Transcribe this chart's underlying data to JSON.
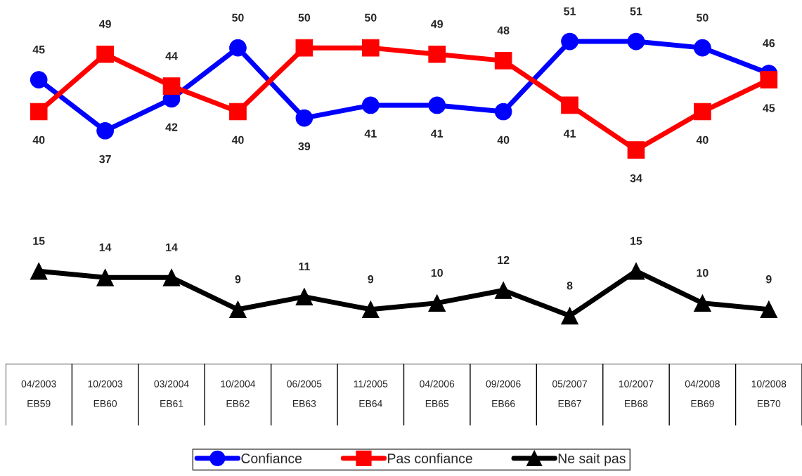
{
  "chart_data": {
    "type": "line",
    "categories": [
      "04/2003\nEB59",
      "10/2003\nEB60",
      "03/2004\nEB61",
      "10/2004\nEB62",
      "06/2005\nEB63",
      "11/2005\nEB64",
      "04/2006\nEB65",
      "09/2006\nEB66",
      "05/2007\nEB67",
      "10/2007\nEB68",
      "04/2008\nEB69",
      "10/2008\nEB70"
    ],
    "series": [
      {
        "name": "Confiance",
        "color": "#0000ff",
        "marker": "circle",
        "values": [
          45,
          37,
          42,
          50,
          39,
          41,
          41,
          40,
          51,
          51,
          50,
          46
        ]
      },
      {
        "name": "Pas confiance",
        "color": "#ff0000",
        "marker": "square",
        "values": [
          40,
          49,
          44,
          40,
          50,
          50,
          49,
          48,
          41,
          34,
          40,
          45
        ]
      },
      {
        "name": "Ne sait pas",
        "color": "#000000",
        "marker": "triangle",
        "values": [
          15,
          14,
          14,
          9,
          11,
          9,
          10,
          12,
          8,
          15,
          10,
          9
        ]
      }
    ],
    "data_labels": true,
    "legend": "bottom",
    "line_style": "solid"
  }
}
